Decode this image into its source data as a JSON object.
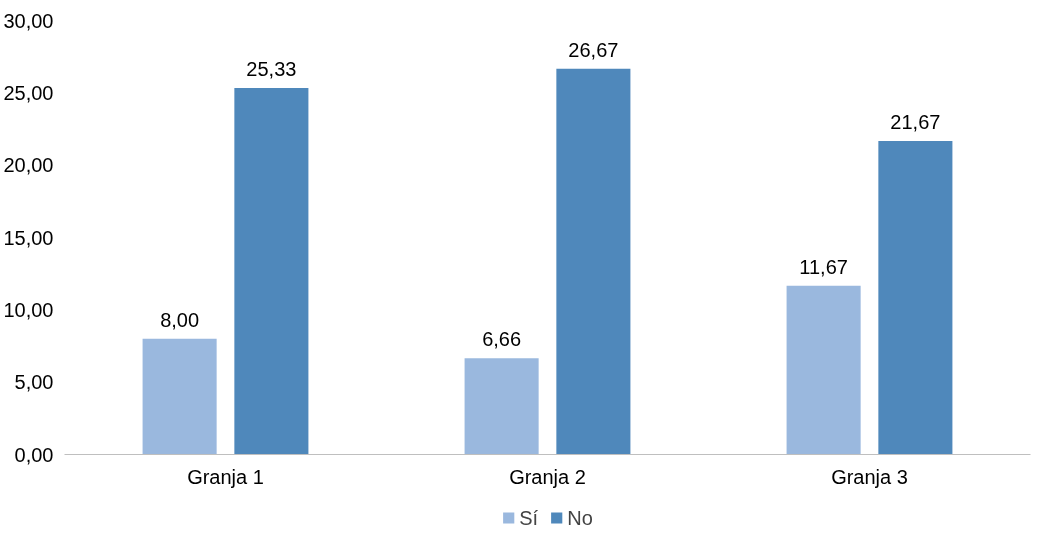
{
  "chart_data": {
    "type": "bar",
    "categories": [
      "Granja 1",
      "Granja 2",
      "Granja 3"
    ],
    "series": [
      {
        "name": "Sí",
        "color": "#9ab8de",
        "values": [
          8.0,
          6.66,
          11.67
        ],
        "value_labels": [
          "8,00",
          "6,66",
          "11,67"
        ]
      },
      {
        "name": "No",
        "color": "#4f88bb",
        "values": [
          25.33,
          26.67,
          21.67
        ],
        "value_labels": [
          "25,33",
          "26,67",
          "21,67"
        ]
      }
    ],
    "ylim": [
      0,
      30
    ],
    "yticks": [
      {
        "value": 0,
        "label": "0,00"
      },
      {
        "value": 5,
        "label": "5,00"
      },
      {
        "value": 10,
        "label": "10,00"
      },
      {
        "value": 15,
        "label": "15,00"
      },
      {
        "value": 20,
        "label": "20,00"
      },
      {
        "value": 25,
        "label": "25,00"
      },
      {
        "value": 30,
        "label": "30,00"
      }
    ],
    "grid": false,
    "legend": "bottom"
  }
}
